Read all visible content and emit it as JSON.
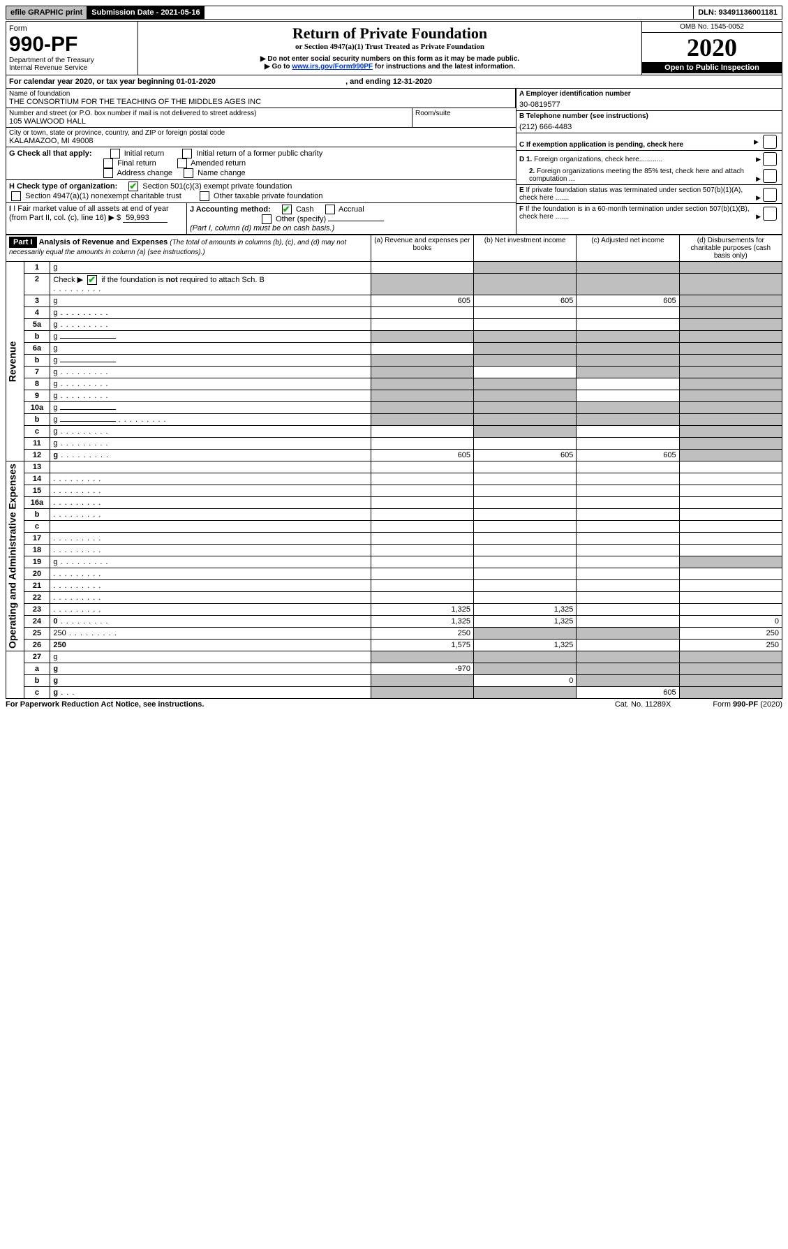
{
  "top": {
    "efile": "efile GRAPHIC print",
    "submission": "Submission Date - 2021-05-16",
    "dln": "DLN: 93491136001181"
  },
  "header": {
    "form": "Form",
    "form_number": "990-PF",
    "dept": "Department of the Treasury",
    "irs": "Internal Revenue Service",
    "title": "Return of Private Foundation",
    "subtitle": "or Section 4947(a)(1) Trust Treated as Private Foundation",
    "note1": "▶ Do not enter social security numbers on this form as it may be made public.",
    "note2_pre": "▶ Go to ",
    "note2_link": "www.irs.gov/Form990PF",
    "note2_post": " for instructions and the latest information.",
    "omb": "OMB No. 1545-0052",
    "year": "2020",
    "open": "Open to Public Inspection"
  },
  "cal": {
    "text_pre": "For calendar year 2020, or tax year beginning ",
    "begin": "01-01-2020",
    "text_mid": " , and ending ",
    "end": "12-31-2020"
  },
  "entity": {
    "name_label": "Name of foundation",
    "name": "THE CONSORTIUM FOR THE TEACHING OF THE MIDDLES AGES INC",
    "addr_label": "Number and street (or P.O. box number if mail is not delivered to street address)",
    "room_label": "Room/suite",
    "street": "105 WALWOOD HALL",
    "city_label": "City or town, state or province, country, and ZIP or foreign postal code",
    "city": "KALAMAZOO, MI  49008",
    "ein_label": "A Employer identification number",
    "ein": "30-0819577",
    "phone_label": "B Telephone number (see instructions)",
    "phone": "(212) 666-4483",
    "c": "C If exemption application is pending, check here",
    "d1": "D 1. Foreign organizations, check here............",
    "d2": "2. Foreign organizations meeting the 85% test, check here and attach computation ...",
    "e": "E If private foundation status was terminated under section 507(b)(1)(A), check here .......",
    "f": "F If the foundation is in a 60-month termination under section 507(b)(1)(B), check here ......."
  },
  "g": {
    "label": "G Check all that apply:",
    "initial": "Initial return",
    "initial_former": "Initial return of a former public charity",
    "final": "Final return",
    "amended": "Amended return",
    "address": "Address change",
    "name_change": "Name change"
  },
  "h": {
    "label": "H Check type of organization:",
    "501c3": "Section 501(c)(3) exempt private foundation",
    "4947": "Section 4947(a)(1) nonexempt charitable trust",
    "other": "Other taxable private foundation"
  },
  "i": {
    "label": "I Fair market value of all assets at end of year (from Part II, col. (c), line 16)",
    "arrow": "▶ $",
    "value": "59,993"
  },
  "j": {
    "label": "J Accounting method:",
    "cash": "Cash",
    "accrual": "Accrual",
    "other": "Other (specify)",
    "note": "(Part I, column (d) must be on cash basis.)"
  },
  "part1": {
    "header": "Part I",
    "title": "Analysis of Revenue and Expenses",
    "title_note": "(The total of amounts in columns (b), (c), and (d) may not necessarily equal the amounts in column (a) (see instructions).)",
    "col_a": "(a) Revenue and expenses per books",
    "col_b": "(b) Net investment income",
    "col_c": "(c) Adjusted net income",
    "col_d": "(d) Disbursements for charitable purposes (cash basis only)"
  },
  "revenue_rows": [
    {
      "n": "1",
      "d": "g",
      "a": "",
      "b": "g",
      "c": "g"
    },
    {
      "n": "2",
      "d": "g",
      "is2": true,
      "a": "g",
      "b": "g",
      "c": "g"
    },
    {
      "n": "3",
      "d": "g",
      "a": "605",
      "b": "605",
      "c": "605"
    },
    {
      "n": "4",
      "d": "g",
      "dots": true,
      "a": "",
      "b": "",
      "c": ""
    },
    {
      "n": "5a",
      "d": "g",
      "dots": true,
      "a": "",
      "b": "",
      "c": ""
    },
    {
      "n": "b",
      "d": "g",
      "fill": true,
      "a": "g",
      "b": "g",
      "c": "g"
    },
    {
      "n": "6a",
      "d": "g",
      "a": "",
      "b": "g",
      "c": "g"
    },
    {
      "n": "b",
      "d": "g",
      "fill": true,
      "a": "g",
      "b": "g",
      "c": "g"
    },
    {
      "n": "7",
      "d": "g",
      "dots": true,
      "a": "g",
      "b": "",
      "c": "g"
    },
    {
      "n": "8",
      "d": "g",
      "dots": true,
      "a": "g",
      "b": "g",
      "c": ""
    },
    {
      "n": "9",
      "d": "g",
      "dots": true,
      "a": "g",
      "b": "g",
      "c": ""
    },
    {
      "n": "10a",
      "d": "g",
      "fill": true,
      "a": "g",
      "b": "g",
      "c": "g"
    },
    {
      "n": "b",
      "d": "g",
      "dots": true,
      "fill": true,
      "a": "g",
      "b": "g",
      "c": "g"
    },
    {
      "n": "c",
      "d": "g",
      "dots": true,
      "a": "",
      "b": "g",
      "c": ""
    },
    {
      "n": "11",
      "d": "g",
      "dots": true,
      "a": "",
      "b": "",
      "c": ""
    },
    {
      "n": "12",
      "d": "g",
      "bold": true,
      "dots": true,
      "a": "605",
      "b": "605",
      "c": "605"
    }
  ],
  "expense_rows": [
    {
      "n": "13",
      "d": "",
      "a": "",
      "b": "",
      "c": ""
    },
    {
      "n": "14",
      "d": "",
      "dots": true,
      "a": "",
      "b": "",
      "c": ""
    },
    {
      "n": "15",
      "d": "",
      "dots": true,
      "a": "",
      "b": "",
      "c": ""
    },
    {
      "n": "16a",
      "d": "",
      "dots": true,
      "a": "",
      "b": "",
      "c": ""
    },
    {
      "n": "b",
      "d": "",
      "dots": true,
      "a": "",
      "b": "",
      "c": ""
    },
    {
      "n": "c",
      "d": "",
      "a": "",
      "b": "",
      "c": ""
    },
    {
      "n": "17",
      "d": "",
      "dots": true,
      "a": "",
      "b": "",
      "c": ""
    },
    {
      "n": "18",
      "d": "",
      "dots": true,
      "a": "",
      "b": "",
      "c": ""
    },
    {
      "n": "19",
      "d": "g",
      "dots": true,
      "a": "",
      "b": "",
      "c": ""
    },
    {
      "n": "20",
      "d": "",
      "dots": true,
      "a": "",
      "b": "",
      "c": ""
    },
    {
      "n": "21",
      "d": "",
      "dots": true,
      "a": "",
      "b": "",
      "c": ""
    },
    {
      "n": "22",
      "d": "",
      "dots": true,
      "a": "",
      "b": "",
      "c": ""
    },
    {
      "n": "23",
      "d": "",
      "dots": true,
      "a": "1,325",
      "b": "1,325",
      "c": ""
    },
    {
      "n": "24",
      "d": "0",
      "bold": true,
      "dots": true,
      "a": "1,325",
      "b": "1,325",
      "c": ""
    },
    {
      "n": "25",
      "d": "250",
      "dots": true,
      "a": "250",
      "b": "g",
      "c": "g"
    },
    {
      "n": "26",
      "d": "250",
      "bold": true,
      "a": "1,575",
      "b": "1,325",
      "c": ""
    }
  ],
  "bottom_rows": [
    {
      "n": "27",
      "d": "g",
      "a": "g",
      "b": "g",
      "c": "g"
    },
    {
      "n": "a",
      "d": "g",
      "bold": true,
      "a": "-970",
      "b": "g",
      "c": "g"
    },
    {
      "n": "b",
      "d": "g",
      "bold": true,
      "a": "g",
      "b": "0",
      "c": "g"
    },
    {
      "n": "c",
      "d": "g",
      "bold": true,
      "dots": true,
      "a": "g",
      "b": "g",
      "c": "605"
    }
  ],
  "footer": {
    "left": "For Paperwork Reduction Act Notice, see instructions.",
    "cat": "Cat. No. 11289X",
    "right": "Form 990-PF (2020)",
    "right_bold": "990-PF"
  },
  "labels": {
    "revenue": "Revenue",
    "expenses": "Operating and Administrative Expenses"
  },
  "check2_text": "if the foundation is ",
  "check2_bold": "not",
  "check2_post": " required to attach Sch. B"
}
